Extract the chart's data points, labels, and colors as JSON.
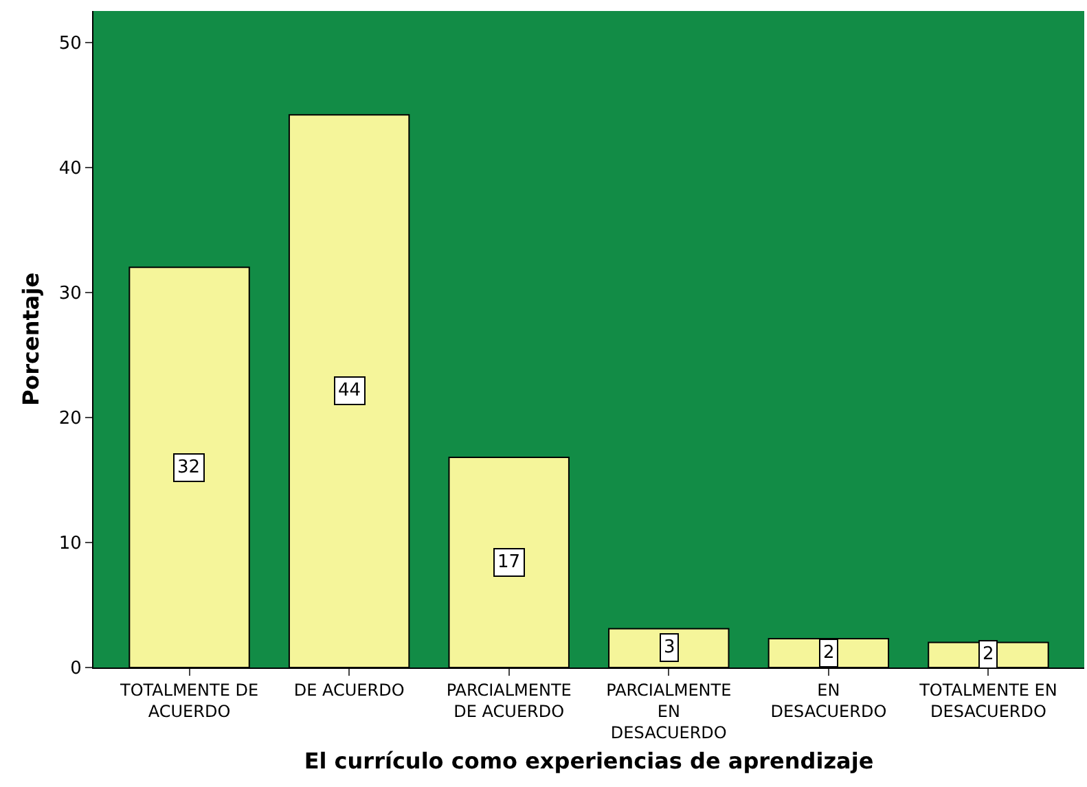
{
  "chart_data": {
    "type": "bar",
    "xlabel": "El currículo como experiencias de aprendizaje",
    "ylabel": "Porcentaje",
    "categories": [
      "TOTALMENTE DE\nACUERDO",
      "DE ACUERDO",
      "PARCIALMENTE\nDE ACUERDO",
      "PARCIALMENTE\nEN\nDESACUERDO",
      "EN\nDESACUERDO",
      "TOTALMENTE EN\nDESACUERDO"
    ],
    "values": [
      32.0,
      44.2,
      16.8,
      3.1,
      2.3,
      2.0
    ],
    "value_labels": [
      "32",
      "44",
      "17",
      "3",
      "2",
      "2"
    ],
    "color": "#f5f59a",
    "ylim": [
      0,
      52.5
    ],
    "yticks": [
      0,
      10,
      20,
      30,
      40,
      50
    ],
    "grid": false
  }
}
